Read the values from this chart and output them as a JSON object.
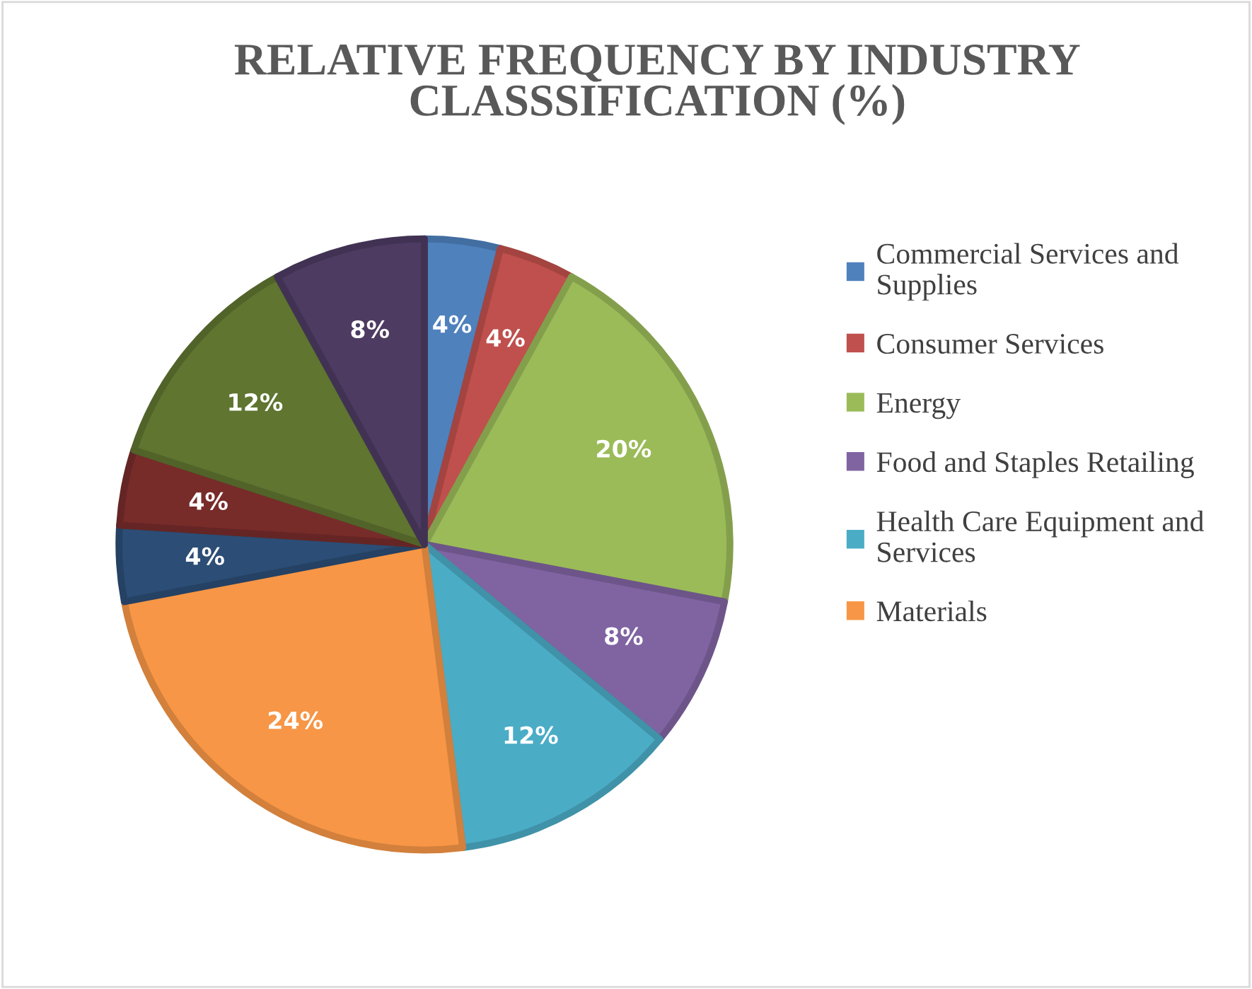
{
  "chart_data": {
    "type": "pie",
    "title": "RELATIVE FREQUENCY BY INDUSTRY CLASSSIFICATION (%)",
    "categories": [
      "Commercial Services and Supplies",
      "Consumer Services",
      "Energy",
      "Food and Staples Retailing",
      "Health Care Equipment and Services",
      "Materials",
      null,
      null,
      null,
      null
    ],
    "values": [
      4,
      4,
      20,
      8,
      12,
      24,
      4,
      4,
      12,
      8
    ],
    "value_labels": [
      "4%",
      "4%",
      "20%",
      "8%",
      "12%",
      "24%",
      "4%",
      "4%",
      "12%",
      "8%"
    ],
    "colors": [
      "#4f81bd",
      "#c0504d",
      "#9bbb59",
      "#8064a2",
      "#4bacc6",
      "#f79646",
      "#2c4d75",
      "#772c2a",
      "#5f7530",
      "#4d3b62"
    ],
    "legend": "right"
  }
}
